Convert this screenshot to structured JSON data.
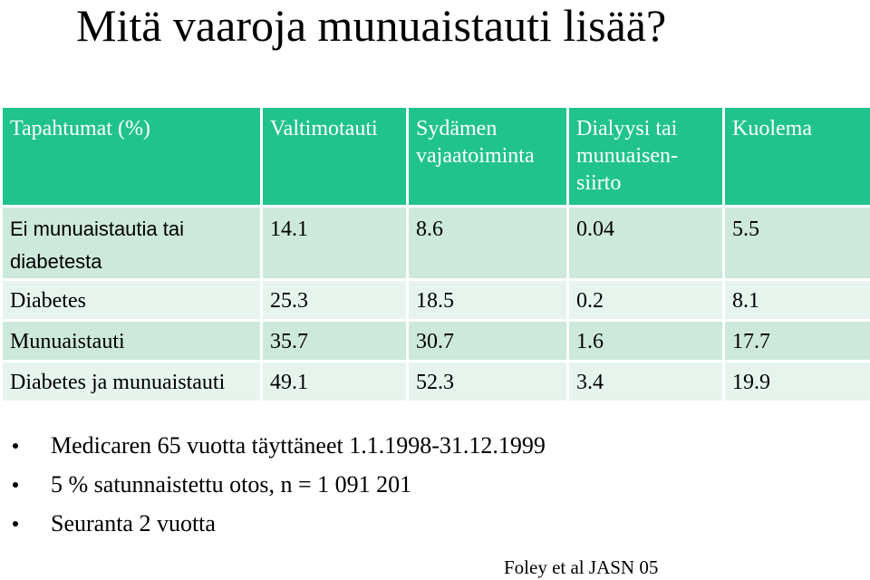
{
  "title": "Mitä vaaroja munuaistauti lisää?",
  "table": {
    "headers": [
      "Tapahtumat (%)",
      "Valtimotauti",
      "Sydämen vajaatoiminta",
      "Dialyysi tai munuaisen-siirto",
      "Kuolema"
    ],
    "rows": [
      {
        "label": "Ei munuaistautia tai diabetesta",
        "values": [
          "14.1",
          "8.6",
          "0.04",
          "5.5"
        ]
      },
      {
        "label": "Diabetes",
        "values": [
          "25.3",
          "18.5",
          "0.2",
          "8.1"
        ]
      },
      {
        "label": "Munuaistauti",
        "values": [
          "35.7",
          "30.7",
          "1.6",
          "17.7"
        ]
      },
      {
        "label": "Diabetes ja munuaistauti",
        "values": [
          "49.1",
          "52.3",
          "3.4",
          "19.9"
        ]
      }
    ]
  },
  "bullets": [
    "Medicaren 65 vuotta täyttäneet 1.1.1998-31.12.1999",
    "5 % satunnaistettu otos, n = 1 091 201",
    "Seuranta 2 vuotta"
  ],
  "citation": "Foley et al JASN 05",
  "colors": {
    "header_bg": "#21c38d",
    "row_dark": "#cde9dc",
    "row_light": "#e6f4ed"
  }
}
